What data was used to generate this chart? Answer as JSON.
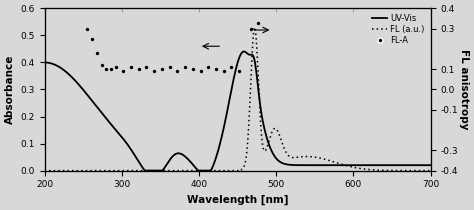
{
  "xlim": [
    200,
    700
  ],
  "ylim_left": [
    0.0,
    0.6
  ],
  "ylim_right": [
    -0.4,
    0.4
  ],
  "xlabel": "Wavelength [nm]",
  "ylabel_left": "Absorbance",
  "ylabel_right": "FL anisotropy",
  "yticks_left": [
    0.0,
    0.1,
    0.2,
    0.3,
    0.4,
    0.5,
    0.6
  ],
  "yticks_right": [
    -0.4,
    -0.3,
    -0.1,
    0.0,
    0.1,
    0.3,
    0.4
  ],
  "xticks": [
    200,
    300,
    400,
    500,
    600,
    700
  ],
  "legend_labels": [
    "UV-Vis",
    "FL (a.u.)",
    "FL-A"
  ],
  "bg_color": "#d8d8d8",
  "uvvis_color": "#000000",
  "fl_color": "#000000",
  "fla_color": "#000000"
}
